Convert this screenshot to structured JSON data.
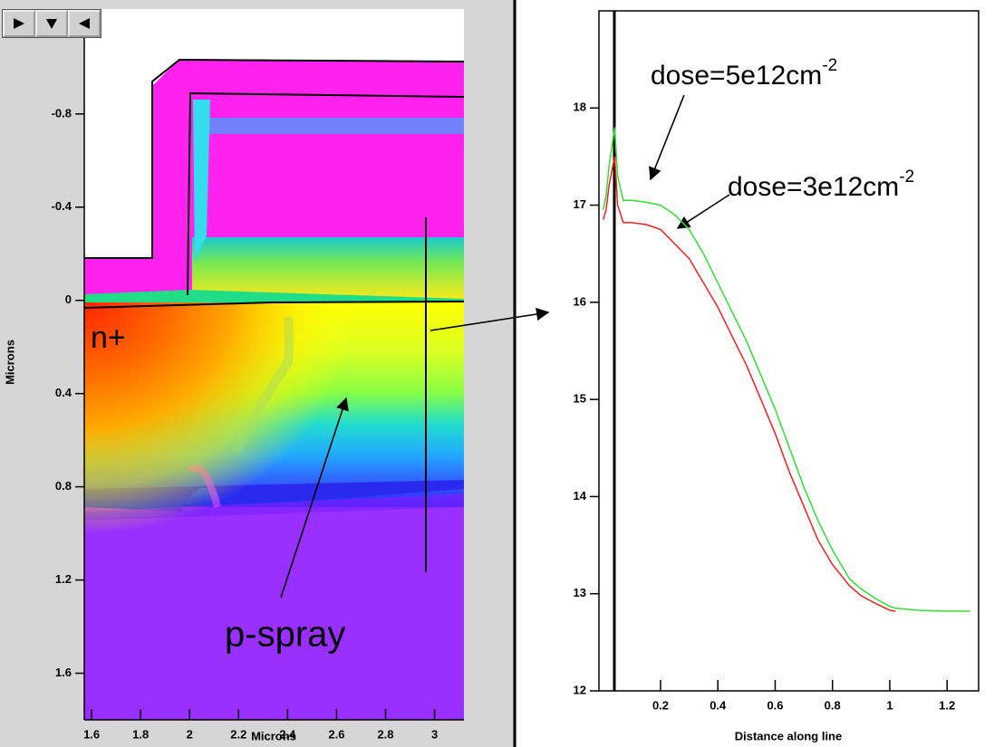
{
  "chart_data": [
    {
      "type": "contour",
      "x_label": "Microns",
      "y_label": "Microns",
      "xlim": [
        1.57,
        3.12
      ],
      "ylim": [
        -1.25,
        1.8
      ],
      "y_inverted": true,
      "xticks": [
        1.6,
        1.8,
        2,
        2.2,
        2.4,
        2.6,
        2.8,
        3
      ],
      "yticks": [
        -0.8,
        -0.4,
        0,
        0.4,
        0.8,
        1.2,
        1.6
      ],
      "annotations": [
        "n+",
        "p-spray"
      ]
    },
    {
      "type": "line",
      "x_label": "Distance along line",
      "xlim": [
        -0.015,
        1.31
      ],
      "ylim": [
        12,
        19
      ],
      "xticks": [
        0.2,
        0.4,
        0.6,
        0.8,
        1,
        1.2
      ],
      "yticks": [
        12,
        13,
        14,
        15,
        16,
        17,
        18
      ],
      "x": [
        0,
        0.01,
        0.02,
        0.03,
        0.04,
        0.05,
        0.07,
        0.1,
        0.15,
        0.2,
        0.25,
        0.3,
        0.35,
        0.4,
        0.45,
        0.5,
        0.55,
        0.6,
        0.65,
        0.7,
        0.75,
        0.8,
        0.86,
        0.9,
        0.95,
        1.0,
        1.02,
        1.1,
        1.2,
        1.28
      ],
      "series": [
        {
          "color": "#33dd33",
          "values": [
            16.95,
            17.1,
            17.4,
            17.6,
            17.8,
            17.3,
            17.05,
            17.05,
            17.03,
            17.0,
            16.9,
            16.75,
            16.5,
            16.2,
            15.9,
            15.6,
            15.25,
            14.9,
            14.5,
            14.1,
            13.75,
            13.45,
            13.15,
            13.05,
            12.95,
            12.87,
            12.85,
            12.83,
            12.82,
            12.82
          ]
        },
        {
          "color": "#ee2222",
          "values": [
            16.85,
            16.95,
            17.2,
            17.35,
            17.5,
            17.0,
            16.82,
            16.82,
            16.8,
            16.75,
            16.6,
            16.45,
            16.2,
            15.95,
            15.65,
            15.35,
            15.0,
            14.65,
            14.25,
            13.9,
            13.55,
            13.3,
            13.08,
            12.98,
            12.9,
            12.83,
            12.82,
            null,
            null,
            null
          ]
        }
      ],
      "annotations": [
        {
          "text": "dose=5e12cm",
          "superscript": "-2"
        },
        {
          "text": "dose=3e12cm",
          "superscript": "-2"
        }
      ]
    }
  ]
}
